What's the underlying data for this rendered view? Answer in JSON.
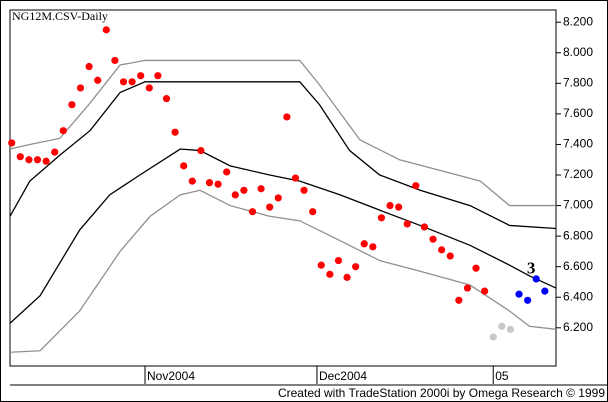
{
  "chart_data": {
    "type": "scatter",
    "title": "NG12M.CSV-Daily",
    "footer": "Created with TradeStation 2000i by Omega Research © 1999",
    "annotation": {
      "text": "3",
      "x": 60.4,
      "y": 6.58
    },
    "xlim": [
      -0.2,
      63.3
    ],
    "ylim": [
      5.95,
      8.28
    ],
    "xticks": [
      {
        "value": 15.5,
        "label": "Nov2004"
      },
      {
        "value": 35.5,
        "label": "Dec2004"
      },
      {
        "value": 56,
        "label": "05"
      }
    ],
    "yticks": [
      {
        "value": 6.2,
        "label": "6.200"
      },
      {
        "value": 6.4,
        "label": "6.400"
      },
      {
        "value": 6.6,
        "label": "6.600"
      },
      {
        "value": 6.8,
        "label": "6.800"
      },
      {
        "value": 7.0,
        "label": "7.000"
      },
      {
        "value": 7.2,
        "label": "7.200"
      },
      {
        "value": 7.4,
        "label": "7.400"
      },
      {
        "value": 7.6,
        "label": "7.600"
      },
      {
        "value": 7.8,
        "label": "7.800"
      },
      {
        "value": 8.0,
        "label": "8.000"
      },
      {
        "value": 8.2,
        "label": "8.200"
      }
    ],
    "series": [
      {
        "mode": "line",
        "color": "#909090",
        "x": [
          -0.2,
          2.1,
          5.6,
          9.1,
          12.6,
          15.5,
          33.5,
          35.8,
          40.5,
          45.1,
          49.8,
          54.5,
          57.9,
          63.3
        ],
        "values": [
          7.37,
          7.4,
          7.44,
          7.67,
          7.92,
          7.95,
          7.95,
          7.79,
          7.43,
          7.3,
          7.23,
          7.16,
          7.0,
          7.0
        ]
      },
      {
        "mode": "line",
        "color": "#000000",
        "x": [
          -0.2,
          2.1,
          5.6,
          9.1,
          12.6,
          15.5,
          33.5,
          35.8,
          39.3,
          42.8,
          47.5,
          53.3,
          57.9,
          63.3
        ],
        "values": [
          6.93,
          7.16,
          7.33,
          7.49,
          7.74,
          7.81,
          7.81,
          7.66,
          7.36,
          7.2,
          7.1,
          7.0,
          6.87,
          6.85
        ]
      },
      {
        "mode": "line",
        "color": "#000000",
        "x": [
          -0.2,
          3.3,
          7.9,
          11.4,
          14.9,
          19.6,
          21.9,
          25.4,
          30.0,
          33.5,
          38.2,
          42.8,
          47.5,
          53.3,
          57.9,
          60.2,
          63.3
        ],
        "values": [
          6.23,
          6.41,
          6.84,
          7.07,
          7.2,
          7.37,
          7.36,
          7.26,
          7.2,
          7.16,
          7.07,
          6.97,
          6.87,
          6.74,
          6.61,
          6.54,
          6.46
        ]
      },
      {
        "mode": "line",
        "color": "#909090",
        "x": [
          -0.2,
          3.3,
          7.9,
          12.6,
          16.1,
          19.6,
          21.9,
          25.4,
          30.0,
          33.5,
          38.2,
          42.8,
          47.5,
          53.3,
          57.9,
          60.2,
          63.3
        ],
        "values": [
          6.04,
          6.05,
          6.31,
          6.7,
          6.93,
          7.07,
          7.1,
          7.0,
          6.93,
          6.9,
          6.77,
          6.64,
          6.57,
          6.48,
          6.31,
          6.21,
          6.19
        ]
      },
      {
        "mode": "dots",
        "color": "#ff0000",
        "x": [
          0,
          1,
          2,
          3,
          4,
          5,
          6,
          7,
          8,
          9,
          10,
          11,
          12,
          13,
          14,
          15,
          16,
          17,
          18,
          19,
          20,
          21,
          22,
          23,
          24,
          25,
          26,
          27,
          28,
          29,
          30,
          31,
          32,
          33,
          34,
          35,
          36,
          37,
          38,
          39,
          40,
          41,
          42,
          43,
          44,
          45,
          46,
          47,
          48,
          49,
          50,
          51,
          52,
          53,
          54,
          55
        ],
        "values": [
          7.41,
          7.32,
          7.3,
          7.3,
          7.29,
          7.35,
          7.49,
          7.66,
          7.77,
          7.91,
          7.82,
          8.15,
          7.95,
          7.81,
          7.81,
          7.85,
          7.77,
          7.85,
          7.7,
          7.48,
          7.26,
          7.16,
          7.36,
          7.15,
          7.14,
          7.22,
          7.07,
          7.1,
          6.96,
          7.11,
          6.99,
          7.05,
          7.58,
          7.18,
          7.1,
          6.96,
          6.61,
          6.55,
          6.64,
          6.53,
          6.6,
          6.75,
          6.73,
          6.92,
          7.0,
          6.99,
          6.88,
          7.13,
          6.86,
          6.78,
          6.71,
          6.67,
          6.38,
          6.46,
          6.59,
          6.44
        ]
      },
      {
        "mode": "dots",
        "color": "#c8c8c8",
        "x": [
          56,
          57,
          58
        ],
        "values": [
          6.14,
          6.21,
          6.19
        ]
      },
      {
        "mode": "dots",
        "color": "#0000ff",
        "x": [
          59,
          60,
          61,
          62
        ],
        "values": [
          6.42,
          6.38,
          6.52,
          6.44
        ]
      }
    ]
  }
}
